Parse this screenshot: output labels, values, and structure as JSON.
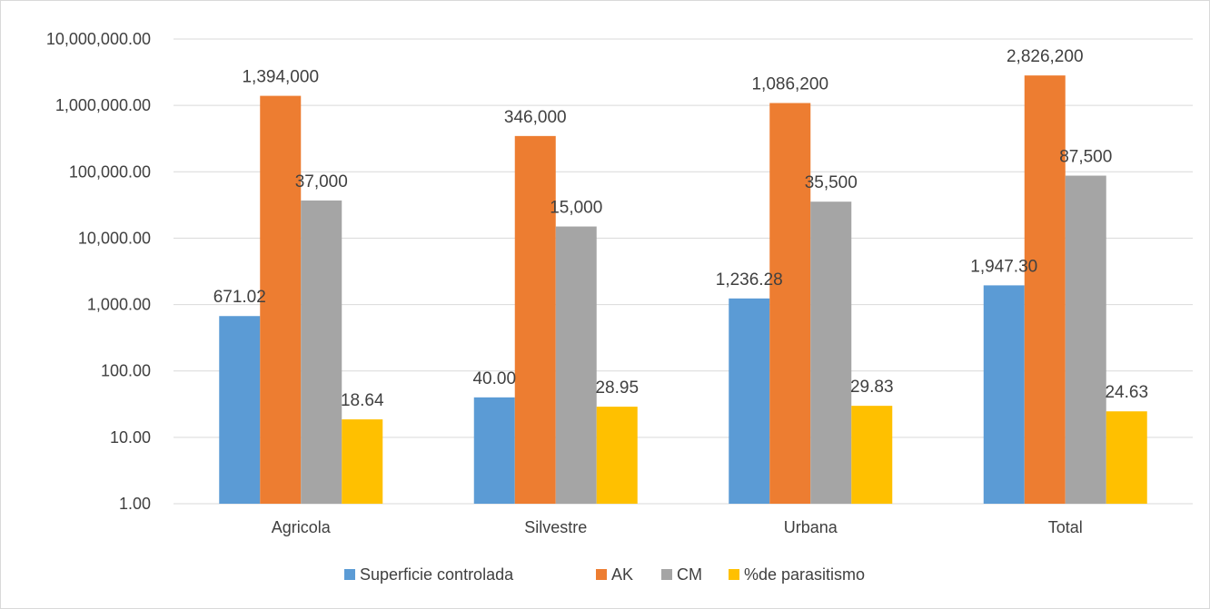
{
  "chart_data": {
    "type": "bar",
    "scale": "log",
    "ylim": [
      1,
      10000000
    ],
    "grid": true,
    "legend_position": "bottom",
    "title": "",
    "xlabel": "",
    "ylabel": "",
    "categories": [
      "Agricola",
      "Silvestre",
      "Urbana",
      "Total"
    ],
    "y_ticks": [
      {
        "value": 1,
        "label": "1.00"
      },
      {
        "value": 10,
        "label": "10.00"
      },
      {
        "value": 100,
        "label": "100.00"
      },
      {
        "value": 1000,
        "label": "1,000.00"
      },
      {
        "value": 10000,
        "label": "10,000.00"
      },
      {
        "value": 100000,
        "label": "100,000.00"
      },
      {
        "value": 1000000,
        "label": "1,000,000.00"
      },
      {
        "value": 10000000,
        "label": "10,000,000.00"
      }
    ],
    "series": [
      {
        "name": "Superficie controlada",
        "color": "#5b9bd5",
        "values": [
          671.02,
          40.0,
          1236.28,
          1947.3
        ],
        "labels": [
          "671.02",
          "40.00",
          "1,236.28",
          "1,947.30"
        ]
      },
      {
        "name": "AK",
        "color": "#ed7d31",
        "values": [
          1394000,
          346000,
          1086200,
          2826200
        ],
        "labels": [
          "1,394,000",
          "346,000",
          "1,086,200",
          "2,826,200"
        ]
      },
      {
        "name": "CM",
        "color": "#a5a5a5",
        "values": [
          37000,
          15000,
          35500,
          87500
        ],
        "labels": [
          "37,000",
          "15,000",
          "35,500",
          "87,500"
        ]
      },
      {
        "name": "%de parasitismo",
        "color": "#ffc000",
        "values": [
          18.64,
          28.95,
          29.83,
          24.63
        ],
        "labels": [
          "18.64",
          "28.95",
          "29.83",
          "24.63"
        ]
      }
    ]
  }
}
